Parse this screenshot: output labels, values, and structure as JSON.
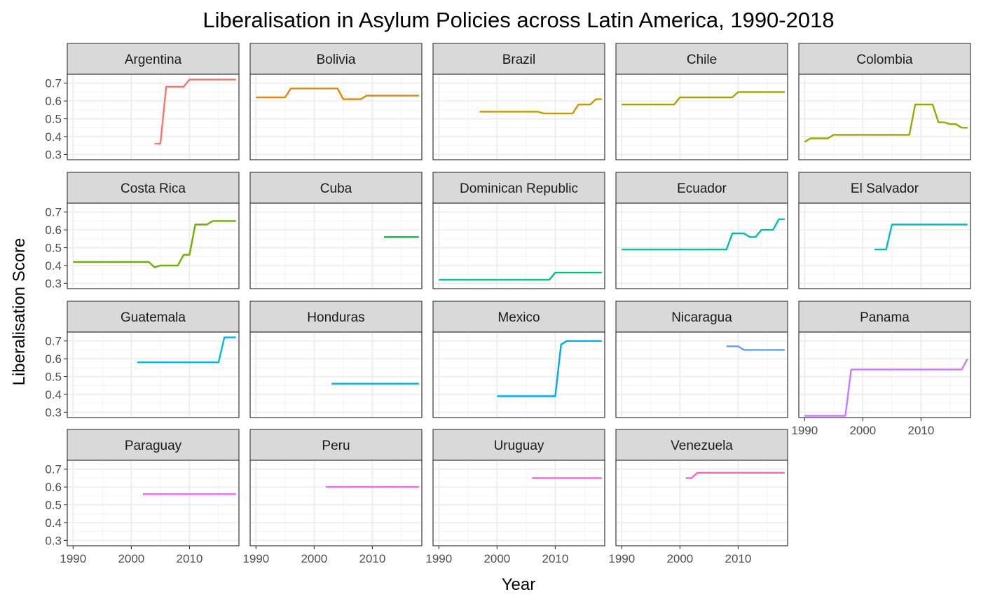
{
  "chart_data": {
    "type": "line",
    "title": "Liberalisation in Asylum Policies across Latin America, 1990-2018",
    "xlabel": "Year",
    "ylabel": "Liberalisation Score",
    "xlim": [
      1989,
      2018.5
    ],
    "ylim": [
      0.27,
      0.75
    ],
    "x_ticks": [
      1990,
      2000,
      2010
    ],
    "x_tick_labels": [
      "1990",
      "2000",
      "2010"
    ],
    "y_ticks": [
      0.3,
      0.4,
      0.5,
      0.6,
      0.7
    ],
    "y_tick_labels": [
      "0.3",
      "0.4",
      "0.5",
      "0.6",
      "0.7"
    ],
    "grid": true,
    "legend": "none",
    "layout": {
      "columns": 5,
      "rows": 4
    },
    "series": [
      {
        "name": "Argentina",
        "color": "#F8766D",
        "points": [
          [
            2004,
            0.36
          ],
          [
            2005,
            0.36
          ],
          [
            2006,
            0.68
          ],
          [
            2009,
            0.68
          ],
          [
            2010,
            0.72
          ],
          [
            2018,
            0.72
          ]
        ]
      },
      {
        "name": "Bolivia",
        "color": "#E58700",
        "points": [
          [
            1990,
            0.62
          ],
          [
            1995,
            0.62
          ],
          [
            1996,
            0.67
          ],
          [
            2004,
            0.67
          ],
          [
            2005,
            0.61
          ],
          [
            2008,
            0.61
          ],
          [
            2009,
            0.63
          ],
          [
            2018,
            0.63
          ]
        ]
      },
      {
        "name": "Brazil",
        "color": "#C99800",
        "points": [
          [
            1997,
            0.54
          ],
          [
            2007,
            0.54
          ],
          [
            2008,
            0.53
          ],
          [
            2013,
            0.53
          ],
          [
            2014,
            0.58
          ],
          [
            2016,
            0.58
          ],
          [
            2017,
            0.61
          ],
          [
            2018,
            0.61
          ]
        ]
      },
      {
        "name": "Chile",
        "color": "#A3A500",
        "points": [
          [
            1990,
            0.58
          ],
          [
            1999,
            0.58
          ],
          [
            2000,
            0.62
          ],
          [
            2009,
            0.62
          ],
          [
            2010,
            0.65
          ],
          [
            2018,
            0.65
          ]
        ]
      },
      {
        "name": "Colombia",
        "color": "#99A800",
        "points": [
          [
            1990,
            0.37
          ],
          [
            1991,
            0.39
          ],
          [
            1994,
            0.39
          ],
          [
            1995,
            0.41
          ],
          [
            2008,
            0.41
          ],
          [
            2009,
            0.58
          ],
          [
            2012,
            0.58
          ],
          [
            2013,
            0.48
          ],
          [
            2014,
            0.48
          ],
          [
            2015,
            0.47
          ],
          [
            2016,
            0.47
          ],
          [
            2017,
            0.45
          ],
          [
            2018,
            0.45
          ]
        ]
      },
      {
        "name": "Costa Rica",
        "color": "#6BB100",
        "points": [
          [
            1990,
            0.42
          ],
          [
            2003,
            0.42
          ],
          [
            2004,
            0.39
          ],
          [
            2005,
            0.4
          ],
          [
            2008,
            0.4
          ],
          [
            2009,
            0.46
          ],
          [
            2010,
            0.46
          ],
          [
            2011,
            0.63
          ],
          [
            2013,
            0.63
          ],
          [
            2014,
            0.65
          ],
          [
            2018,
            0.65
          ]
        ]
      },
      {
        "name": "Cuba",
        "color": "#00BA38",
        "points": [
          [
            2012,
            0.56
          ],
          [
            2018,
            0.56
          ]
        ]
      },
      {
        "name": "Dominican Republic",
        "color": "#00BF7D",
        "points": [
          [
            1990,
            0.32
          ],
          [
            2009,
            0.32
          ],
          [
            2010,
            0.36
          ],
          [
            2018,
            0.36
          ]
        ]
      },
      {
        "name": "Ecuador",
        "color": "#00C0A3",
        "points": [
          [
            1990,
            0.49
          ],
          [
            2008,
            0.49
          ],
          [
            2009,
            0.58
          ],
          [
            2011,
            0.58
          ],
          [
            2012,
            0.56
          ],
          [
            2013,
            0.56
          ],
          [
            2014,
            0.6
          ],
          [
            2016,
            0.6
          ],
          [
            2017,
            0.66
          ],
          [
            2018,
            0.66
          ]
        ]
      },
      {
        "name": "El Salvador",
        "color": "#00BFC4",
        "points": [
          [
            2002,
            0.49
          ],
          [
            2004,
            0.49
          ],
          [
            2005,
            0.63
          ],
          [
            2018,
            0.63
          ]
        ]
      },
      {
        "name": "Guatemala",
        "color": "#00B8E7",
        "points": [
          [
            2001,
            0.58
          ],
          [
            2015,
            0.58
          ],
          [
            2016,
            0.72
          ],
          [
            2018,
            0.72
          ]
        ]
      },
      {
        "name": "Honduras",
        "color": "#00B0F6",
        "points": [
          [
            2003,
            0.46
          ],
          [
            2018,
            0.46
          ]
        ]
      },
      {
        "name": "Mexico",
        "color": "#00A9FF",
        "points": [
          [
            2000,
            0.39
          ],
          [
            2010,
            0.39
          ],
          [
            2011,
            0.68
          ],
          [
            2012,
            0.7
          ],
          [
            2018,
            0.7
          ]
        ]
      },
      {
        "name": "Nicaragua",
        "color": "#619CFF",
        "points": [
          [
            2008,
            0.67
          ],
          [
            2010,
            0.67
          ],
          [
            2011,
            0.65
          ],
          [
            2018,
            0.65
          ]
        ]
      },
      {
        "name": "Panama",
        "color": "#C77CFF",
        "points": [
          [
            1990,
            0.28
          ],
          [
            1997,
            0.28
          ],
          [
            1998,
            0.54
          ],
          [
            2017,
            0.54
          ],
          [
            2018,
            0.6
          ]
        ]
      },
      {
        "name": "Paraguay",
        "color": "#E76BF3",
        "points": [
          [
            2002,
            0.56
          ],
          [
            2018,
            0.56
          ]
        ]
      },
      {
        "name": "Peru",
        "color": "#E76BF3",
        "points": [
          [
            2002,
            0.6
          ],
          [
            2018,
            0.6
          ]
        ]
      },
      {
        "name": "Uruguay",
        "color": "#FA62DB",
        "points": [
          [
            2006,
            0.65
          ],
          [
            2018,
            0.65
          ]
        ]
      },
      {
        "name": "Venezuela",
        "color": "#FF62BC",
        "points": [
          [
            2001,
            0.65
          ],
          [
            2002,
            0.65
          ],
          [
            2003,
            0.68
          ],
          [
            2018,
            0.68
          ]
        ]
      }
    ]
  }
}
